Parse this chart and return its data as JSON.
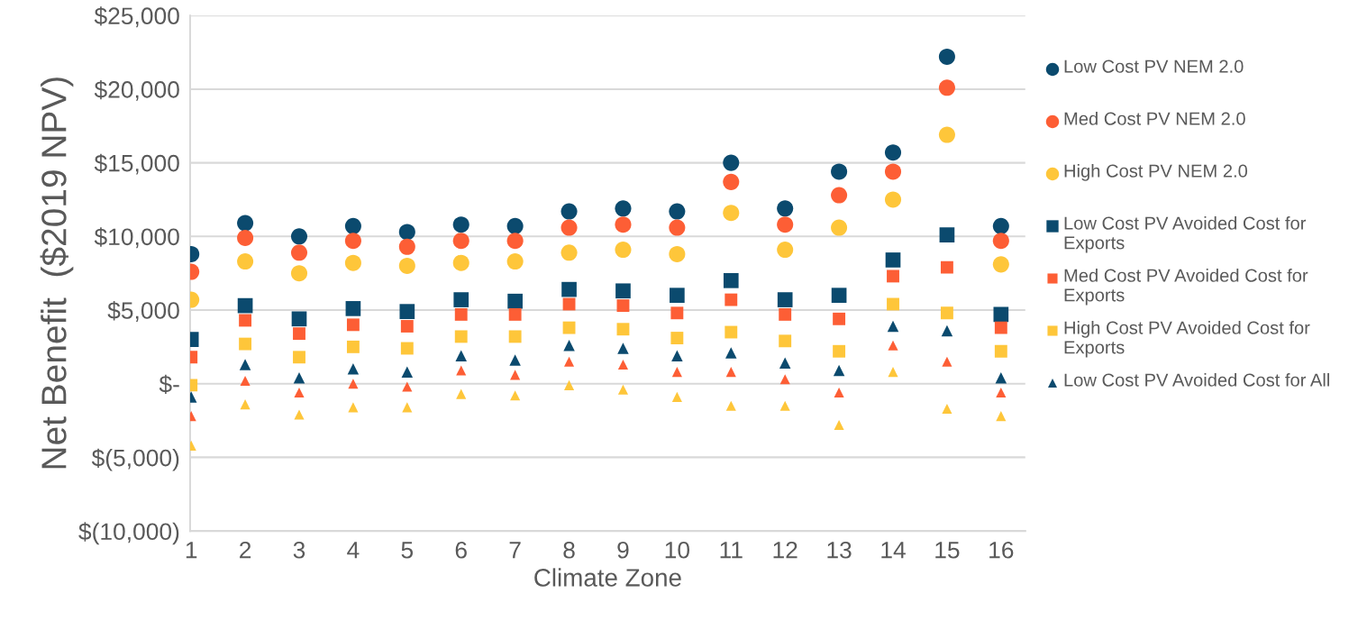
{
  "chart_data": {
    "type": "scatter",
    "xlabel": "Climate Zone",
    "ylabel": "Net Benefit  ($2019 NPV)",
    "categories": [
      "1",
      "2",
      "3",
      "4",
      "5",
      "6",
      "7",
      "8",
      "9",
      "10",
      "11",
      "12",
      "13",
      "14",
      "15",
      "16"
    ],
    "ylim": [
      -10000,
      25000
    ],
    "yticks": [
      {
        "value": -10000,
        "label": "$(10,000)"
      },
      {
        "value": -5000,
        "label": "$(5,000)"
      },
      {
        "value": 0,
        "label": "$-"
      },
      {
        "value": 5000,
        "label": "$5,000"
      },
      {
        "value": 10000,
        "label": "$10,000"
      },
      {
        "value": 15000,
        "label": "$15,000"
      },
      {
        "value": 20000,
        "label": "$20,000"
      },
      {
        "value": 25000,
        "label": "$25,000"
      }
    ],
    "grid": "y",
    "legend": "right",
    "series": [
      {
        "name": "Low Cost PV NEM 2.0",
        "color": "#0b4a6e",
        "marker": "circle",
        "values": [
          8800,
          10900,
          10000,
          10700,
          10300,
          10800,
          10700,
          11700,
          11900,
          11700,
          15000,
          11900,
          14400,
          15700,
          22200,
          10700
        ]
      },
      {
        "name": "Med Cost PV NEM 2.0",
        "color": "#fd5e35",
        "marker": "circle",
        "values": [
          7600,
          9900,
          8900,
          9700,
          9300,
          9700,
          9700,
          10600,
          10800,
          10600,
          13700,
          10800,
          12800,
          14400,
          20100,
          9700
        ]
      },
      {
        "name": "High Cost PV NEM 2.0",
        "color": "#fec63a",
        "marker": "circle",
        "values": [
          5700,
          8300,
          7500,
          8200,
          8000,
          8200,
          8300,
          8900,
          9100,
          8800,
          11600,
          9100,
          10600,
          12500,
          16900,
          8100
        ]
      },
      {
        "name": "Low Cost PV Avoided Cost for Exports",
        "color": "#0b4a6e",
        "marker": "square",
        "values": [
          3000,
          5300,
          4400,
          5100,
          4900,
          5700,
          5600,
          6400,
          6300,
          6000,
          7000,
          5700,
          6000,
          8400,
          10100,
          4700
        ]
      },
      {
        "name": "Med Cost PV Avoided Cost for Exports",
        "color": "#fd5e35",
        "marker": "square",
        "values": [
          1800,
          4300,
          3400,
          4000,
          3900,
          4700,
          4700,
          5400,
          5300,
          4800,
          5700,
          4700,
          4400,
          7300,
          7900,
          3800
        ]
      },
      {
        "name": "High Cost PV Avoided Cost for Exports",
        "color": "#fec63a",
        "marker": "square",
        "values": [
          -100,
          2700,
          1800,
          2500,
          2400,
          3200,
          3200,
          3800,
          3700,
          3100,
          3500,
          2900,
          2200,
          5400,
          4800,
          2200
        ]
      },
      {
        "name": "Low Cost PV Avoided Cost for All",
        "color": "#0b4a6e",
        "marker": "triangle",
        "values": [
          -900,
          1300,
          400,
          1000,
          800,
          1900,
          1600,
          2600,
          2400,
          1900,
          2100,
          1400,
          900,
          3900,
          3600,
          400
        ]
      },
      {
        "color": "#fd5e35",
        "marker": "triangle",
        "values": [
          -2200,
          200,
          -600,
          0,
          -200,
          900,
          600,
          1500,
          1300,
          800,
          800,
          300,
          -600,
          2600,
          1500,
          -600
        ]
      },
      {
        "color": "#fec63a",
        "marker": "triangle",
        "values": [
          -4200,
          -1400,
          -2100,
          -1600,
          -1600,
          -700,
          -800,
          -100,
          -400,
          -900,
          -1500,
          -1500,
          -2800,
          800,
          -1700,
          -2200
        ]
      }
    ]
  }
}
